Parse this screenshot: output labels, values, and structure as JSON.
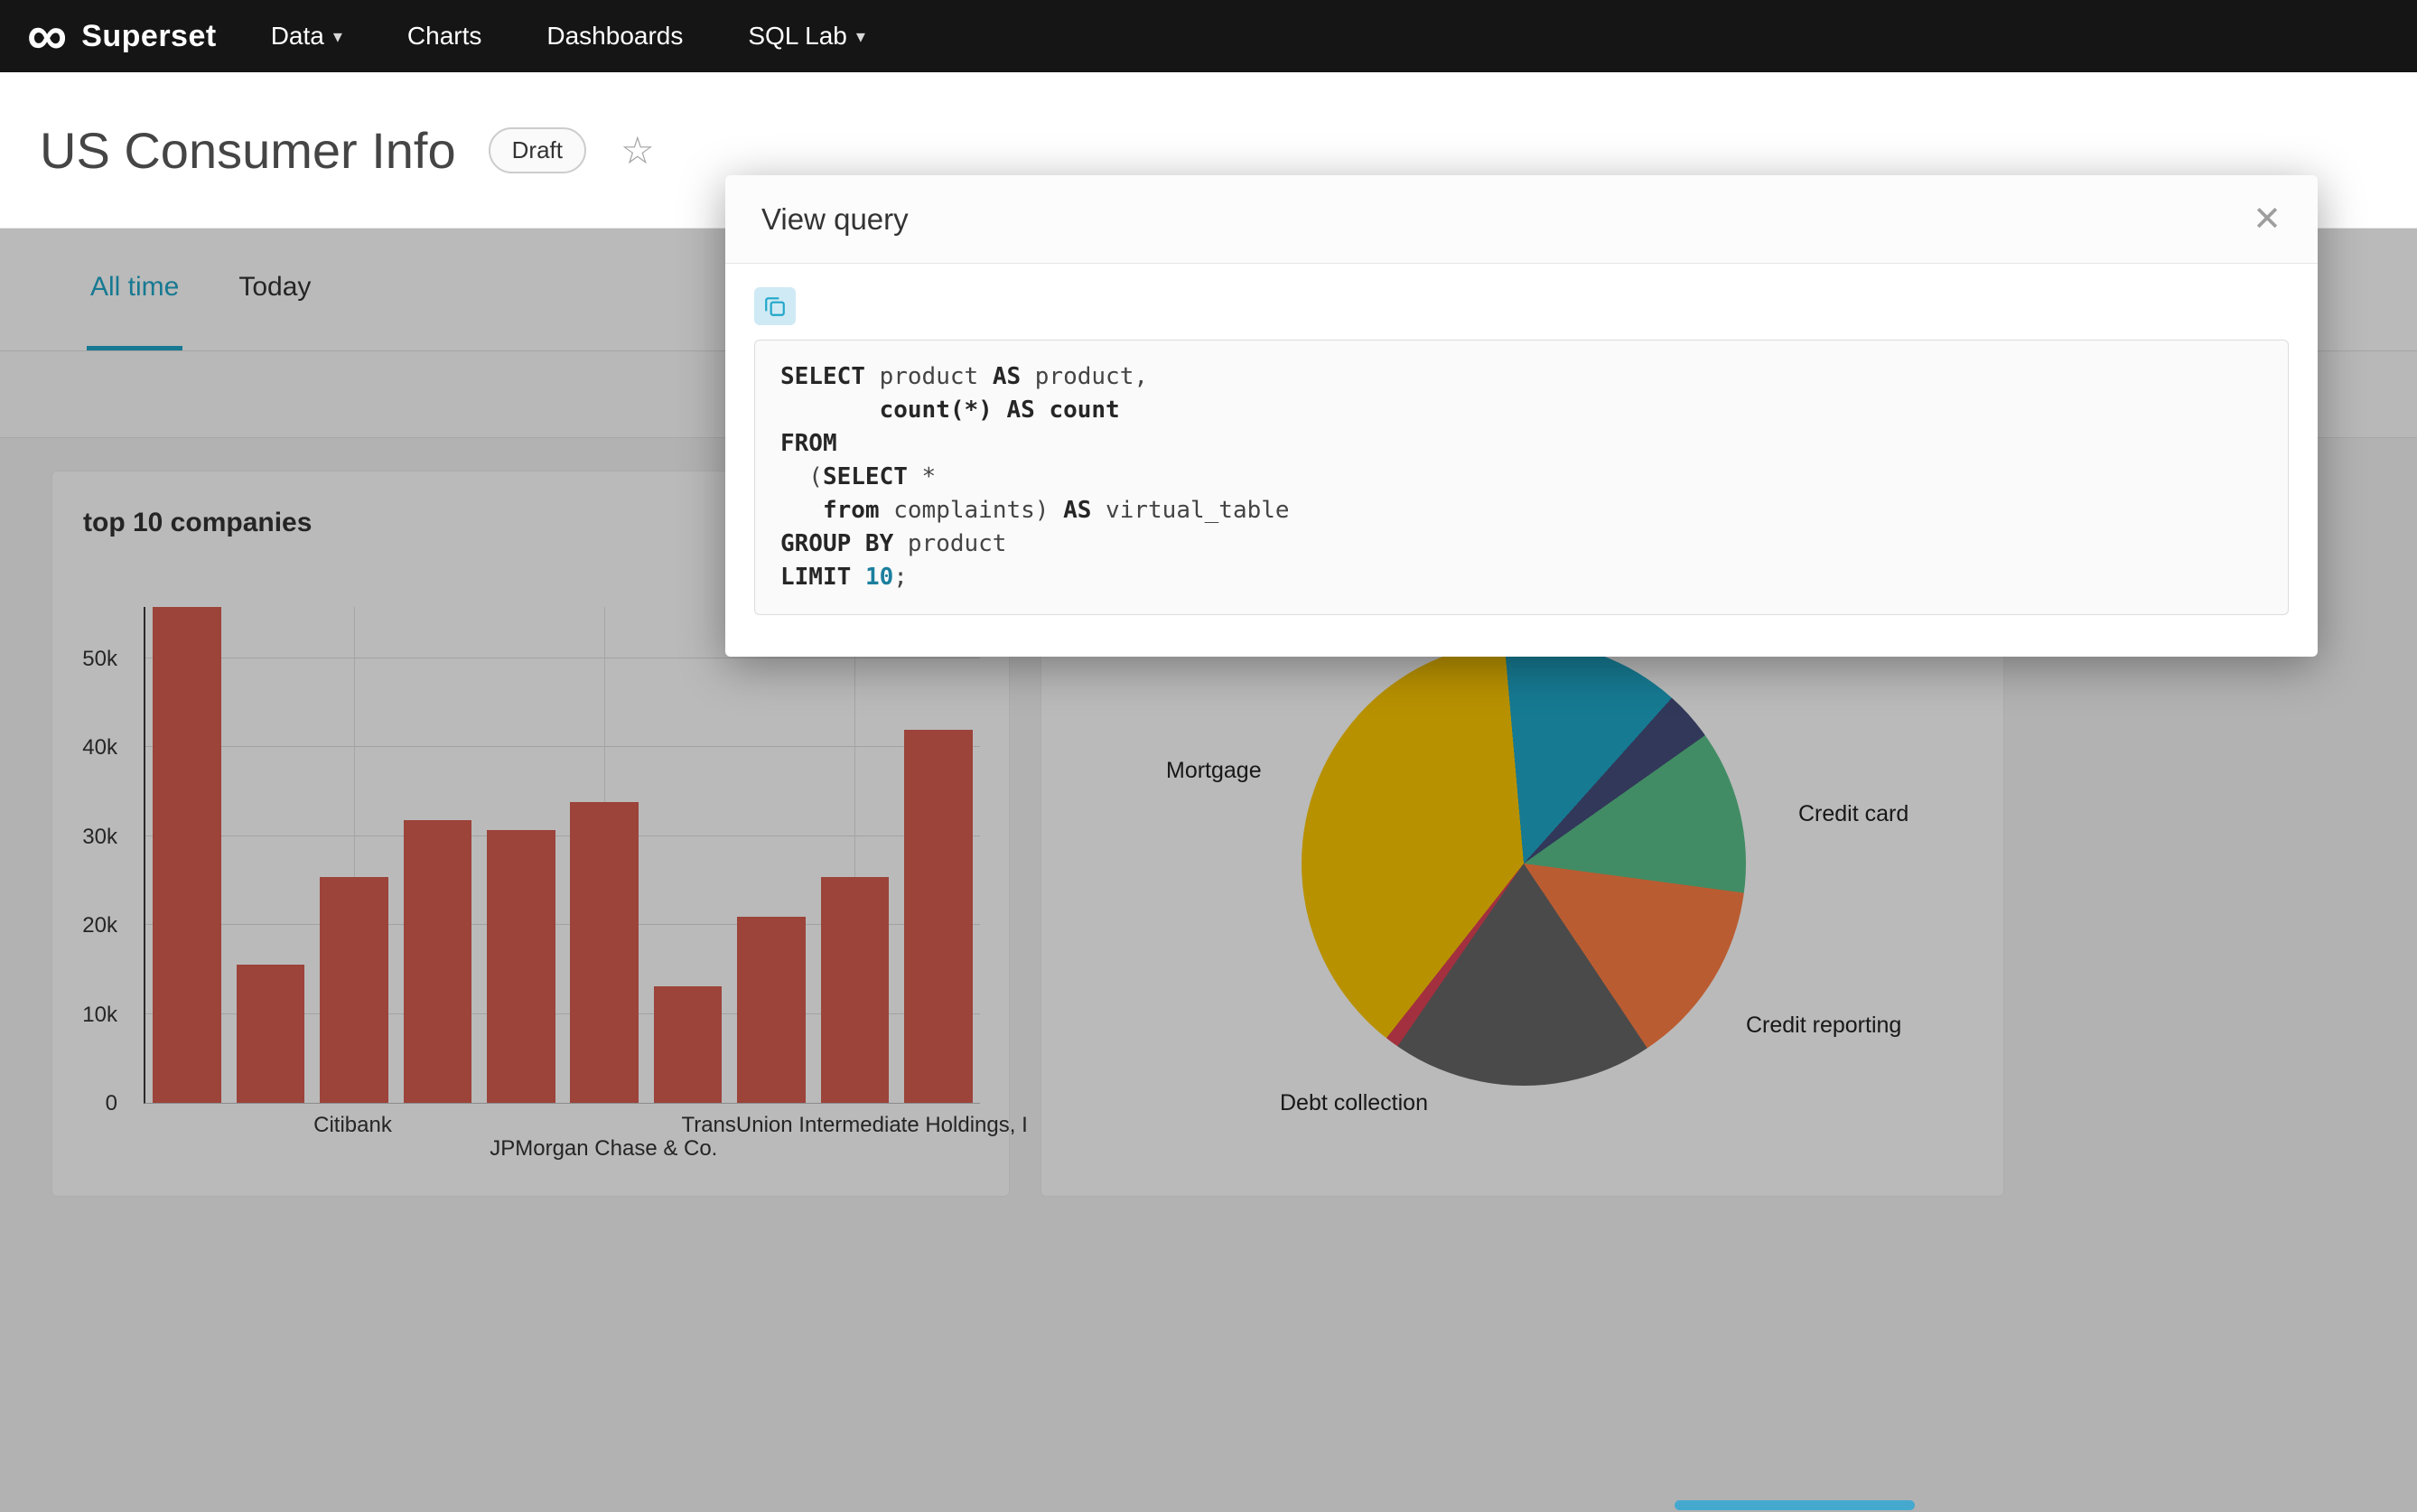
{
  "icons": {
    "infinity": "∞",
    "caret": "▾",
    "star": "☆",
    "close": "✕"
  },
  "nav": {
    "brand": "Superset",
    "items": [
      "Data",
      "Charts",
      "Dashboards",
      "SQL Lab"
    ]
  },
  "header": {
    "title": "US Consumer Info",
    "status_badge": "Draft"
  },
  "tabs": {
    "all_time": "All time",
    "today": "Today"
  },
  "modal": {
    "title": "View query",
    "sql_lines": [
      [
        [
          "kw",
          "SELECT"
        ],
        [
          "pl",
          " product "
        ],
        [
          "kw",
          "AS"
        ],
        [
          "pl",
          " product,"
        ]
      ],
      [
        [
          "pl",
          "       "
        ],
        [
          "fn",
          "count(*)"
        ],
        [
          "pl",
          " "
        ],
        [
          "kw",
          "AS"
        ],
        [
          "pl",
          " "
        ],
        [
          "fn",
          "count"
        ]
      ],
      [
        [
          "kw",
          "FROM"
        ]
      ],
      [
        [
          "pl",
          "  ("
        ],
        [
          "kw",
          "SELECT"
        ],
        [
          "pl",
          " *"
        ]
      ],
      [
        [
          "pl",
          "   "
        ],
        [
          "kw",
          "from"
        ],
        [
          "pl",
          " complaints) "
        ],
        [
          "kw",
          "AS"
        ],
        [
          "pl",
          " virtual_table"
        ]
      ],
      [
        [
          "kw",
          "GROUP BY"
        ],
        [
          "pl",
          " product"
        ]
      ],
      [
        [
          "kw",
          "LIMIT"
        ],
        [
          "pl",
          " "
        ],
        [
          "num",
          "10"
        ],
        [
          "pl",
          ";"
        ]
      ]
    ]
  },
  "chart_data": [
    {
      "type": "bar",
      "title": "top 10 companies",
      "values": [
        55800,
        15600,
        25400,
        31800,
        30700,
        33800,
        13100,
        20900,
        25400,
        42000
      ],
      "ymax": 55900,
      "ylim": [
        0,
        55900
      ],
      "yticks": [
        "0",
        "10k",
        "20k",
        "30k",
        "40k",
        "50k"
      ],
      "ytick_values": [
        0,
        10000,
        20000,
        30000,
        40000,
        50000
      ],
      "x_gridlines_pct": [
        25,
        55,
        85
      ],
      "x_labels": [
        {
          "text": "Citibank",
          "x_pct": 25,
          "row": 1
        },
        {
          "text": "JPMorgan Chase & Co.",
          "x_pct": 55,
          "row": 2
        },
        {
          "text": "TransUnion Intermediate Holdings, I",
          "x_pct": 85,
          "row": 1
        }
      ],
      "bar_color": "#d65c50",
      "grid": true,
      "legend": "none"
    },
    {
      "type": "pie",
      "start_angle_deg": -5,
      "slices": [
        {
          "label": "",
          "color": "#1FA8C9",
          "percent": 13.0
        },
        {
          "label": "",
          "color": "#454E7C",
          "percent": 3.6
        },
        {
          "label": "Credit card",
          "color": "#5AC189",
          "percent": 11.9
        },
        {
          "label": "Credit reporting",
          "color": "#FF7F44",
          "percent": 13.5
        },
        {
          "label": "Debt collection",
          "color": "#666666",
          "percent": 19.0
        },
        {
          "label": "",
          "color": "#E04355",
          "percent": 1.0
        },
        {
          "label": "Mortgage",
          "color": "#FCC700",
          "percent": 38.0
        }
      ],
      "legend": "none"
    }
  ]
}
